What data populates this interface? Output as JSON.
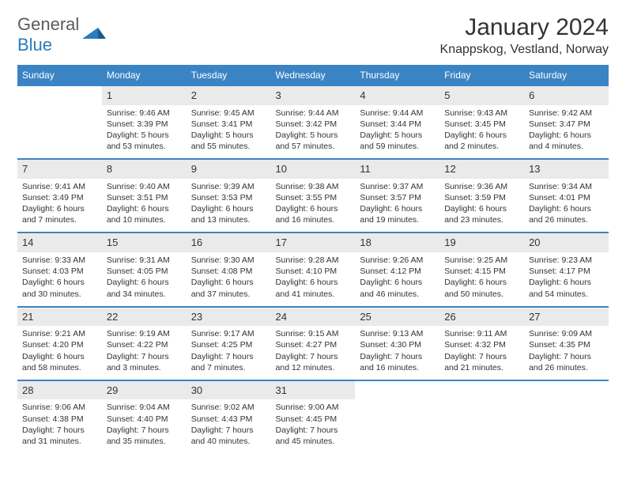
{
  "logo": {
    "part1": "General",
    "part2": "Blue"
  },
  "title": "January 2024",
  "location": "Knappskog, Vestland, Norway",
  "colors": {
    "header_bg": "#3b84c4",
    "header_text": "#ffffff",
    "daynum_bg": "#eaeaea",
    "border": "#3b84c4",
    "text": "#333333",
    "logo_gray": "#5b5b5b",
    "logo_blue": "#2b7bbd"
  },
  "day_headers": [
    "Sunday",
    "Monday",
    "Tuesday",
    "Wednesday",
    "Thursday",
    "Friday",
    "Saturday"
  ],
  "weeks": [
    [
      {
        "n": "",
        "sr": "",
        "ss": "",
        "dl": ""
      },
      {
        "n": "1",
        "sr": "Sunrise: 9:46 AM",
        "ss": "Sunset: 3:39 PM",
        "dl": "Daylight: 5 hours and 53 minutes."
      },
      {
        "n": "2",
        "sr": "Sunrise: 9:45 AM",
        "ss": "Sunset: 3:41 PM",
        "dl": "Daylight: 5 hours and 55 minutes."
      },
      {
        "n": "3",
        "sr": "Sunrise: 9:44 AM",
        "ss": "Sunset: 3:42 PM",
        "dl": "Daylight: 5 hours and 57 minutes."
      },
      {
        "n": "4",
        "sr": "Sunrise: 9:44 AM",
        "ss": "Sunset: 3:44 PM",
        "dl": "Daylight: 5 hours and 59 minutes."
      },
      {
        "n": "5",
        "sr": "Sunrise: 9:43 AM",
        "ss": "Sunset: 3:45 PM",
        "dl": "Daylight: 6 hours and 2 minutes."
      },
      {
        "n": "6",
        "sr": "Sunrise: 9:42 AM",
        "ss": "Sunset: 3:47 PM",
        "dl": "Daylight: 6 hours and 4 minutes."
      }
    ],
    [
      {
        "n": "7",
        "sr": "Sunrise: 9:41 AM",
        "ss": "Sunset: 3:49 PM",
        "dl": "Daylight: 6 hours and 7 minutes."
      },
      {
        "n": "8",
        "sr": "Sunrise: 9:40 AM",
        "ss": "Sunset: 3:51 PM",
        "dl": "Daylight: 6 hours and 10 minutes."
      },
      {
        "n": "9",
        "sr": "Sunrise: 9:39 AM",
        "ss": "Sunset: 3:53 PM",
        "dl": "Daylight: 6 hours and 13 minutes."
      },
      {
        "n": "10",
        "sr": "Sunrise: 9:38 AM",
        "ss": "Sunset: 3:55 PM",
        "dl": "Daylight: 6 hours and 16 minutes."
      },
      {
        "n": "11",
        "sr": "Sunrise: 9:37 AM",
        "ss": "Sunset: 3:57 PM",
        "dl": "Daylight: 6 hours and 19 minutes."
      },
      {
        "n": "12",
        "sr": "Sunrise: 9:36 AM",
        "ss": "Sunset: 3:59 PM",
        "dl": "Daylight: 6 hours and 23 minutes."
      },
      {
        "n": "13",
        "sr": "Sunrise: 9:34 AM",
        "ss": "Sunset: 4:01 PM",
        "dl": "Daylight: 6 hours and 26 minutes."
      }
    ],
    [
      {
        "n": "14",
        "sr": "Sunrise: 9:33 AM",
        "ss": "Sunset: 4:03 PM",
        "dl": "Daylight: 6 hours and 30 minutes."
      },
      {
        "n": "15",
        "sr": "Sunrise: 9:31 AM",
        "ss": "Sunset: 4:05 PM",
        "dl": "Daylight: 6 hours and 34 minutes."
      },
      {
        "n": "16",
        "sr": "Sunrise: 9:30 AM",
        "ss": "Sunset: 4:08 PM",
        "dl": "Daylight: 6 hours and 37 minutes."
      },
      {
        "n": "17",
        "sr": "Sunrise: 9:28 AM",
        "ss": "Sunset: 4:10 PM",
        "dl": "Daylight: 6 hours and 41 minutes."
      },
      {
        "n": "18",
        "sr": "Sunrise: 9:26 AM",
        "ss": "Sunset: 4:12 PM",
        "dl": "Daylight: 6 hours and 46 minutes."
      },
      {
        "n": "19",
        "sr": "Sunrise: 9:25 AM",
        "ss": "Sunset: 4:15 PM",
        "dl": "Daylight: 6 hours and 50 minutes."
      },
      {
        "n": "20",
        "sr": "Sunrise: 9:23 AM",
        "ss": "Sunset: 4:17 PM",
        "dl": "Daylight: 6 hours and 54 minutes."
      }
    ],
    [
      {
        "n": "21",
        "sr": "Sunrise: 9:21 AM",
        "ss": "Sunset: 4:20 PM",
        "dl": "Daylight: 6 hours and 58 minutes."
      },
      {
        "n": "22",
        "sr": "Sunrise: 9:19 AM",
        "ss": "Sunset: 4:22 PM",
        "dl": "Daylight: 7 hours and 3 minutes."
      },
      {
        "n": "23",
        "sr": "Sunrise: 9:17 AM",
        "ss": "Sunset: 4:25 PM",
        "dl": "Daylight: 7 hours and 7 minutes."
      },
      {
        "n": "24",
        "sr": "Sunrise: 9:15 AM",
        "ss": "Sunset: 4:27 PM",
        "dl": "Daylight: 7 hours and 12 minutes."
      },
      {
        "n": "25",
        "sr": "Sunrise: 9:13 AM",
        "ss": "Sunset: 4:30 PM",
        "dl": "Daylight: 7 hours and 16 minutes."
      },
      {
        "n": "26",
        "sr": "Sunrise: 9:11 AM",
        "ss": "Sunset: 4:32 PM",
        "dl": "Daylight: 7 hours and 21 minutes."
      },
      {
        "n": "27",
        "sr": "Sunrise: 9:09 AM",
        "ss": "Sunset: 4:35 PM",
        "dl": "Daylight: 7 hours and 26 minutes."
      }
    ],
    [
      {
        "n": "28",
        "sr": "Sunrise: 9:06 AM",
        "ss": "Sunset: 4:38 PM",
        "dl": "Daylight: 7 hours and 31 minutes."
      },
      {
        "n": "29",
        "sr": "Sunrise: 9:04 AM",
        "ss": "Sunset: 4:40 PM",
        "dl": "Daylight: 7 hours and 35 minutes."
      },
      {
        "n": "30",
        "sr": "Sunrise: 9:02 AM",
        "ss": "Sunset: 4:43 PM",
        "dl": "Daylight: 7 hours and 40 minutes."
      },
      {
        "n": "31",
        "sr": "Sunrise: 9:00 AM",
        "ss": "Sunset: 4:45 PM",
        "dl": "Daylight: 7 hours and 45 minutes."
      },
      {
        "n": "",
        "sr": "",
        "ss": "",
        "dl": ""
      },
      {
        "n": "",
        "sr": "",
        "ss": "",
        "dl": ""
      },
      {
        "n": "",
        "sr": "",
        "ss": "",
        "dl": ""
      }
    ]
  ]
}
